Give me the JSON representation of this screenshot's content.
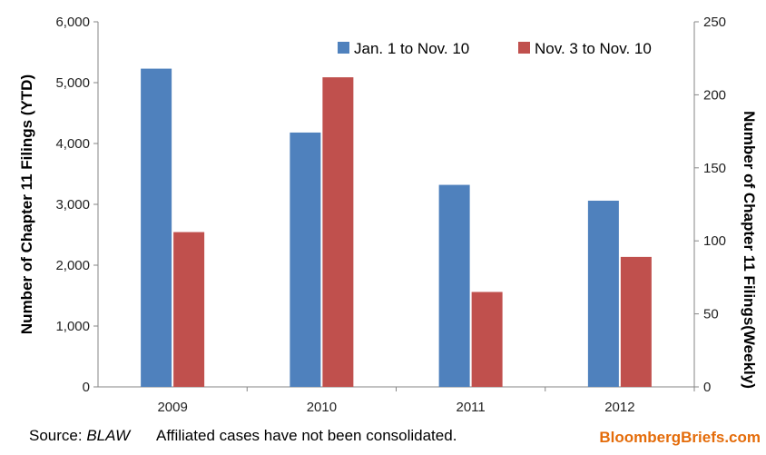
{
  "chart_data": {
    "type": "bar",
    "categories": [
      "2009",
      "2010",
      "2011",
      "2012"
    ],
    "series": [
      {
        "name": "Jan. 1 to Nov. 10",
        "axis": "left",
        "color": "#4f81bd",
        "values": [
          5230,
          4180,
          3320,
          3060
        ]
      },
      {
        "name": "Nov. 3 to Nov. 10",
        "axis": "right",
        "color": "#c0504d",
        "values": [
          106,
          212,
          65,
          89
        ]
      }
    ],
    "y_left": {
      "label": "Number of Chapter 11 Filings (YTD)",
      "min": 0,
      "max": 6000,
      "ticks": [
        "0",
        "1,000",
        "2,000",
        "3,000",
        "4,000",
        "5,000",
        "6,000"
      ],
      "tick_values": [
        0,
        1000,
        2000,
        3000,
        4000,
        5000,
        6000
      ]
    },
    "y_right": {
      "label": "Number of Chapter 11 Filings(Weekly)",
      "min": 0,
      "max": 250,
      "ticks": [
        "0",
        "50",
        "100",
        "150",
        "200",
        "250"
      ],
      "tick_values": [
        0,
        50,
        100,
        150,
        200,
        250
      ]
    },
    "legend_position": "top-right",
    "grid": false
  },
  "footer": {
    "source_prefix": "Source: ",
    "source_name": "BLAW",
    "note": "Affiliated cases have not been consolidated.",
    "brand": "BloombergBriefs.com"
  }
}
